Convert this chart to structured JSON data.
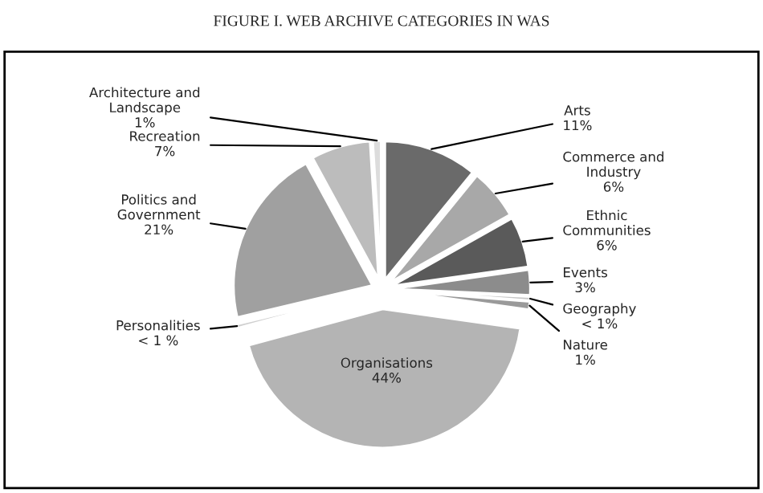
{
  "chart_data": {
    "type": "pie",
    "title": "FIGURE I. WEB ARCHIVE CATEGORIES IN WAS",
    "categories": [
      "Arts",
      "Commerce and Industry",
      "Ethnic Communities",
      "Events",
      "Geography",
      "Nature",
      "Organisations",
      "Personalities",
      "Politics and Government",
      "Recreation",
      "Architecture and Landscape"
    ],
    "values": [
      11,
      6,
      6,
      3,
      0.5,
      1,
      44,
      0.5,
      21,
      7,
      1
    ],
    "value_labels": [
      "11%",
      "6%",
      "6%",
      "3%",
      "< 1%",
      "1%",
      "44%",
      "< 1 %",
      "21%",
      "7%",
      "1%"
    ],
    "colors": [
      "#6a6a6a",
      "#a8a8a8",
      "#5a5a5a",
      "#8c8c8c",
      "#c8c8c8",
      "#9a9a9a",
      "#b4b4b4",
      "#d0d0d0",
      "#a0a0a0",
      "#bcbcbc",
      "#dcdcdc"
    ],
    "legend": false
  }
}
